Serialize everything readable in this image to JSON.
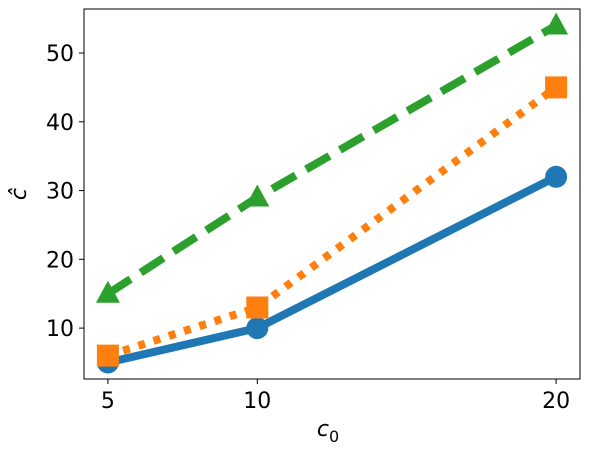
{
  "chart_data": {
    "type": "line",
    "xlabel": "c",
    "xlabel_sub": "0",
    "ylabel": "ĉ",
    "x": [
      5,
      10,
      20
    ],
    "xticks": [
      "5",
      "10",
      "20"
    ],
    "yticks": [
      "10",
      "20",
      "30",
      "40",
      "50"
    ],
    "xlim": [
      4.2,
      20.8
    ],
    "ylim": [
      2.6,
      56.4
    ],
    "grid": false,
    "series": [
      {
        "values": [
          5,
          10,
          32
        ],
        "color": "#1f77b4",
        "linestyle": "solid",
        "marker": "circle"
      },
      {
        "values": [
          6,
          13,
          45
        ],
        "color": "#ff7f0e",
        "linestyle": "dotted",
        "marker": "square"
      },
      {
        "values": [
          15,
          29,
          54
        ],
        "color": "#2ca02c",
        "linestyle": "dashed",
        "marker": "triangle"
      }
    ]
  }
}
